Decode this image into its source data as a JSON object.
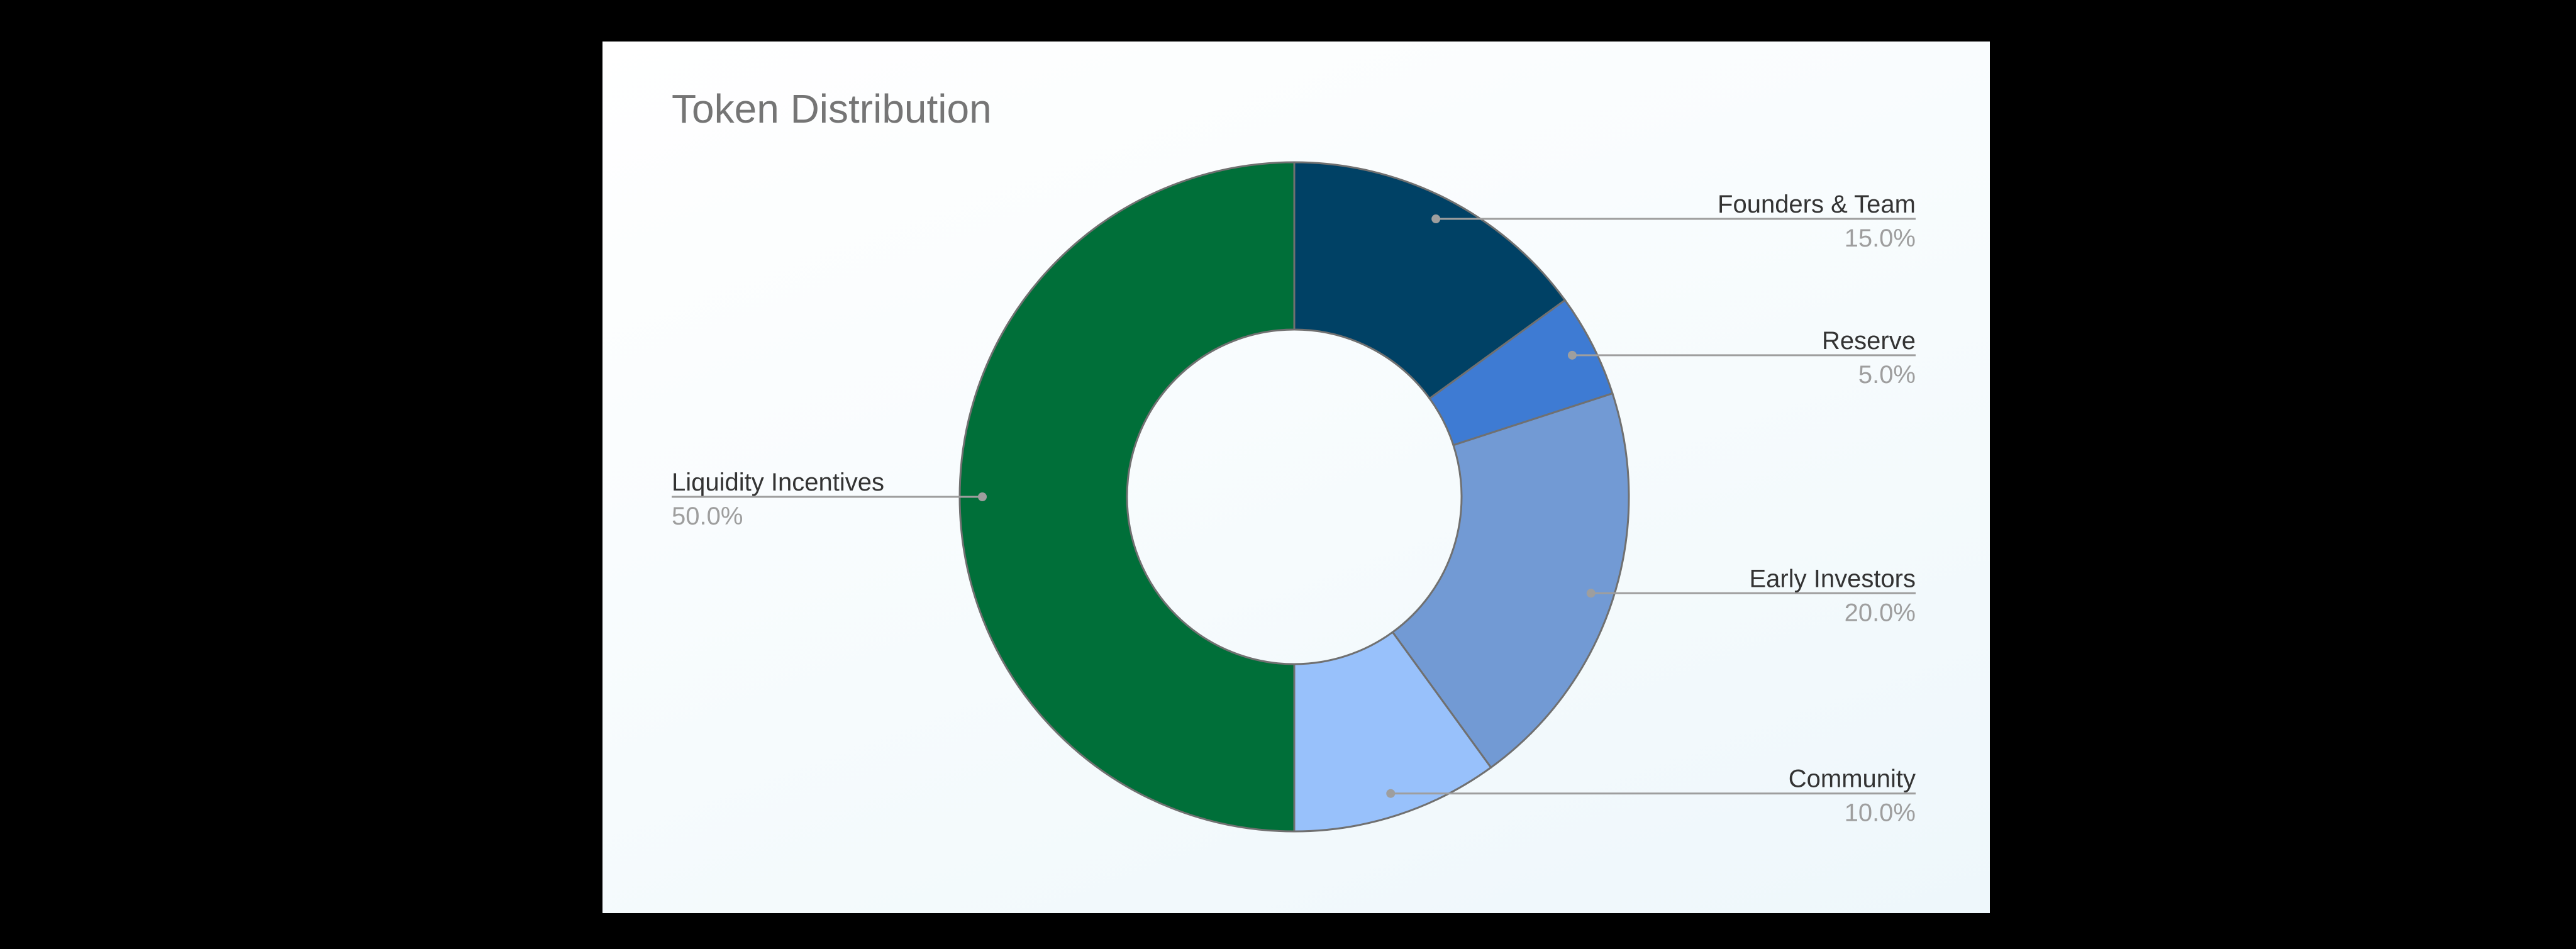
{
  "chart_data": {
    "type": "pie",
    "title": "Token Distribution",
    "donut": true,
    "legend": "labels-outside",
    "slices": [
      {
        "label": "Founders & Team",
        "value": 15.0,
        "display": "15.0%",
        "color": "#004165"
      },
      {
        "label": "Reserve",
        "value": 5.0,
        "display": "5.0%",
        "color": "#3e7bd3"
      },
      {
        "label": "Early Investors",
        "value": 20.0,
        "display": "20.0%",
        "color": "#729ad4"
      },
      {
        "label": "Community",
        "value": 10.0,
        "display": "10.0%",
        "color": "#98c1fb"
      },
      {
        "label": "Liquidity Incentives",
        "value": 50.0,
        "display": "50.0%",
        "color": "#006f39"
      }
    ],
    "colors": {
      "label": "#333333",
      "value": "#9e9e9e",
      "leader": "#9e9e9e",
      "outline": "#707070"
    }
  }
}
